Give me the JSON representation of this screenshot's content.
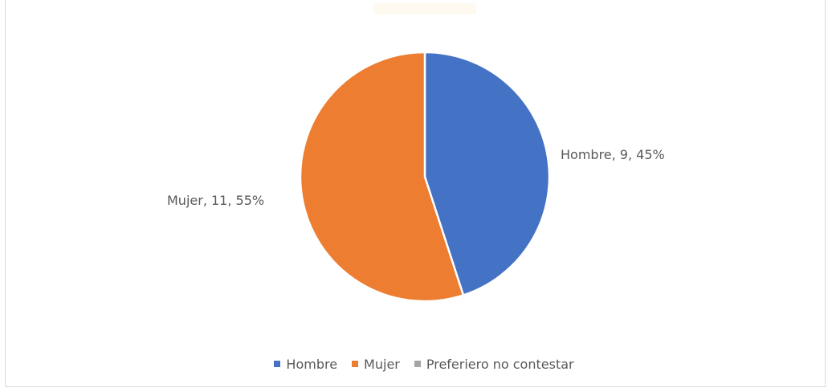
{
  "chart_data": {
    "type": "pie",
    "title": "",
    "series": [
      {
        "values": [
          9,
          11,
          0
        ]
      }
    ],
    "slices": [
      {
        "label": "Hombre",
        "value": 9,
        "percent": 45,
        "data_label": "Hombre, 9, 45%",
        "color": "#4472C4"
      },
      {
        "label": "Mujer",
        "value": 11,
        "percent": 55,
        "data_label": "Mujer, 11, 55%",
        "color": "#ED7D31"
      },
      {
        "label": "Preferiero no contestar",
        "value": 0,
        "percent": 0,
        "data_label": "",
        "color": "#A5A5A5"
      }
    ],
    "legend": {
      "position": "bottom",
      "entries": [
        "Hombre",
        "Mujer",
        "Preferiero no contestar"
      ]
    }
  }
}
